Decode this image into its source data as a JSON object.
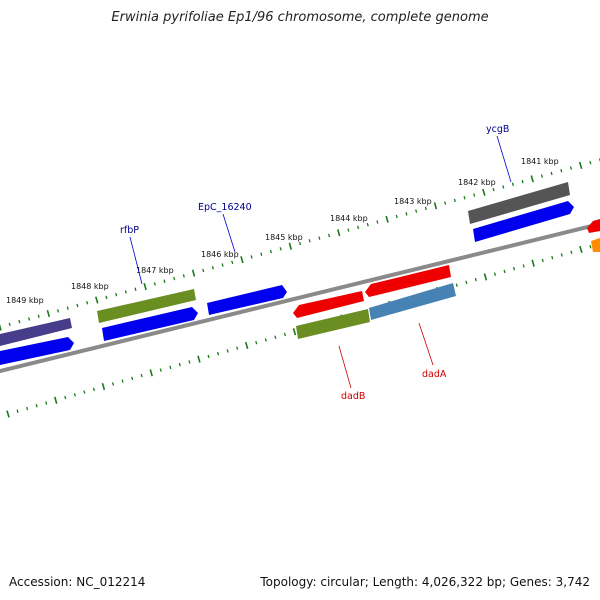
{
  "title": "Erwinia pyrifoliae Ep1/96 chromosome, complete genome",
  "footer": {
    "accession": "Accession: NC_012214",
    "summary": "Topology: circular; Length: 4,026,322 bp; Genes: 3,742"
  },
  "colors": {
    "backbone": "#888888",
    "tick": "#1a7a1a",
    "label_blue": "#00008b",
    "label_red": "#cc0000"
  },
  "scale_ticks": [
    {
      "label": "1841 kbp"
    },
    {
      "label": "1842 kbp"
    },
    {
      "label": "1843 kbp"
    },
    {
      "label": "1844 kbp"
    },
    {
      "label": "1845 kbp"
    },
    {
      "label": "1846 kbp"
    },
    {
      "label": "1847 kbp"
    },
    {
      "label": "1848 kbp"
    },
    {
      "label": "1849 kbp"
    }
  ],
  "genes": [
    {
      "name": "ycgB",
      "color": "#555555"
    },
    {
      "name": "EpC_16240",
      "color": "#0000ee"
    },
    {
      "name": "rfbP",
      "color": "#6b8e23"
    },
    {
      "name": "dadA",
      "color": "#4682b4"
    },
    {
      "name": "dadB",
      "color": "#6b8e23"
    }
  ]
}
